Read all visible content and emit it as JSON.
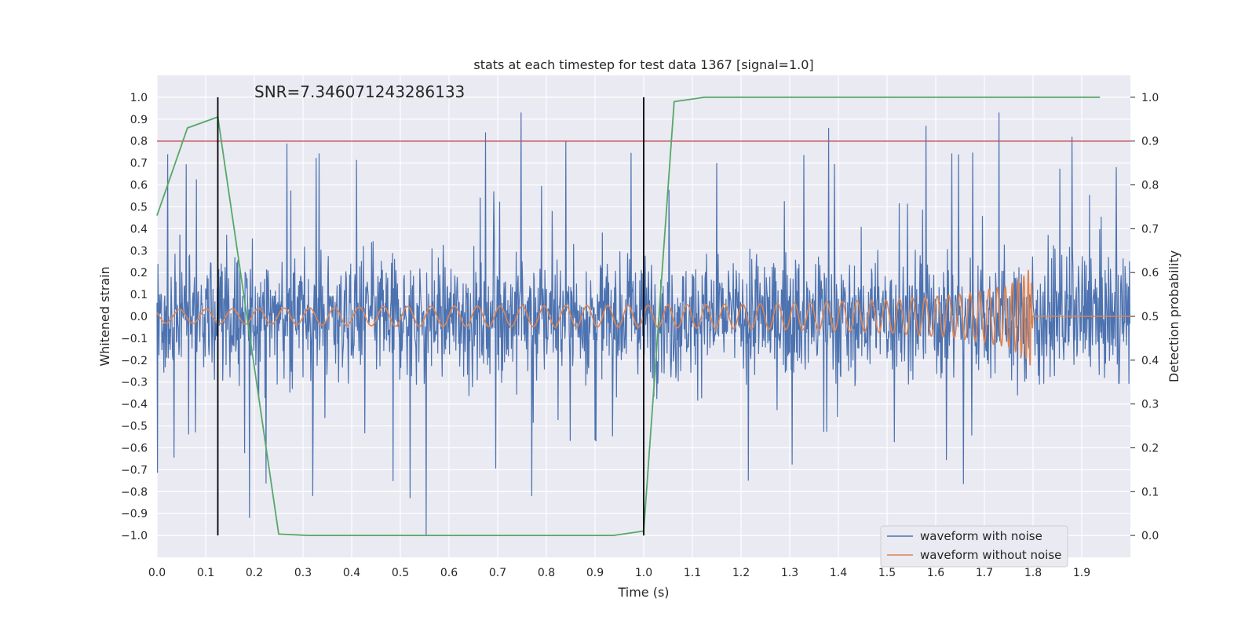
{
  "chart_data": {
    "type": "line",
    "title": "stats at each timestep for test data 1367 [signal=1.0]",
    "xlabel": "Time (s)",
    "ylabel": "Whitened strain",
    "ylabel_right": "Detection probability",
    "annotation": "SNR=7.346071243286133",
    "xlim": [
      0,
      2.0
    ],
    "ylim": [
      -1.1,
      1.1
    ],
    "ylim_right": [
      -0.05,
      1.05
    ],
    "x_ticks": [
      "0.0",
      "0.1",
      "0.2",
      "0.3",
      "0.4",
      "0.5",
      "0.6",
      "0.7",
      "0.8",
      "0.9",
      "1.0",
      "1.1",
      "1.2",
      "1.3",
      "1.4",
      "1.5",
      "1.6",
      "1.7",
      "1.8",
      "1.9"
    ],
    "y_ticks": [
      "1.0",
      "0.9",
      "0.8",
      "0.7",
      "0.6",
      "0.5",
      "0.4",
      "0.3",
      "0.2",
      "0.1",
      "0.0",
      "-0.1",
      "-0.2",
      "-0.3",
      "-0.4",
      "-0.5",
      "-0.6",
      "-0.7",
      "-0.8",
      "-0.9",
      "-1.0"
    ],
    "y_ticks_right": [
      "0.0",
      "0.1",
      "0.2",
      "0.3",
      "0.4",
      "0.5",
      "0.6",
      "0.7",
      "0.8",
      "0.9",
      "1.0"
    ],
    "grid": true,
    "legend_position": "lower-right",
    "series": [
      {
        "name": "waveform with noise",
        "axis": "left",
        "color": "#4c72b0",
        "description": "dense noisy strain, amplitude roughly ±0.3 with spikes to ±1.0",
        "peaks": [
          {
            "x": 0.022,
            "y": 0.74
          },
          {
            "x": 0.19,
            "y": -0.92
          },
          {
            "x": 0.32,
            "y": -0.82
          },
          {
            "x": 0.52,
            "y": -0.83
          },
          {
            "x": 0.553,
            "y": -1.0
          },
          {
            "x": 0.675,
            "y": 0.84
          },
          {
            "x": 0.748,
            "y": 0.93
          },
          {
            "x": 0.77,
            "y": -0.82
          },
          {
            "x": 0.84,
            "y": 0.8
          },
          {
            "x": 1.38,
            "y": 0.86
          },
          {
            "x": 1.58,
            "y": 0.87
          },
          {
            "x": 1.73,
            "y": 0.93
          },
          {
            "x": 1.88,
            "y": 0.82
          }
        ]
      },
      {
        "name": "waveform without noise",
        "axis": "left",
        "color": "#dd8452",
        "description": "chirp signal with rising frequency and amplitude, merger near 1.8 s then flat zero",
        "points": [
          [
            0.0,
            0.03
          ],
          [
            0.5,
            0.045
          ],
          [
            1.0,
            0.05
          ],
          [
            1.3,
            0.06
          ],
          [
            1.5,
            0.075
          ],
          [
            1.65,
            0.1
          ],
          [
            1.75,
            0.14
          ],
          [
            1.785,
            0.19
          ],
          [
            1.795,
            0.23
          ],
          [
            1.8,
            0.0
          ],
          [
            2.0,
            0.0
          ]
        ]
      },
      {
        "name": "",
        "axis": "right",
        "color": "#55a868",
        "x": [
          0.0,
          0.0625,
          0.125,
          0.25,
          0.3125,
          0.375,
          0.9375,
          1.0,
          1.0625,
          1.125,
          1.9375
        ],
        "y": [
          0.73,
          0.93,
          0.955,
          0.003,
          0.0,
          0.0,
          0.0,
          0.01,
          0.99,
          1.0,
          1.0
        ]
      }
    ],
    "threshold": {
      "axis": "right",
      "value": 0.9,
      "color": "#c44e52"
    },
    "vertical_lines": [
      {
        "x": 0.125,
        "color": "#000000"
      },
      {
        "x": 1.0,
        "color": "#000000"
      }
    ]
  }
}
